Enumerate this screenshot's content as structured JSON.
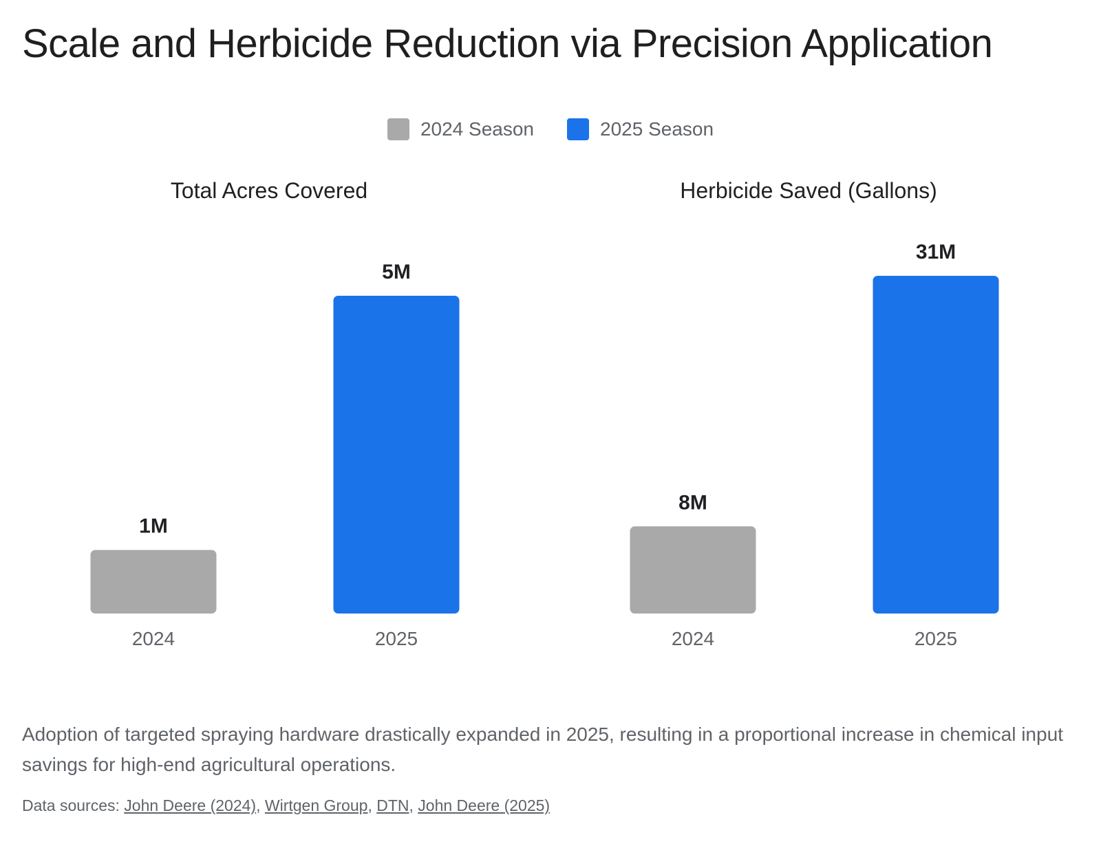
{
  "title": "Scale and Herbicide Reduction via Precision Application",
  "legend": [
    {
      "label": "2024 Season",
      "color": "#a9a9a9"
    },
    {
      "label": "2025 Season",
      "color": "#1a73e8"
    }
  ],
  "chart_data": [
    {
      "type": "bar",
      "title": "Total Acres Covered",
      "categories": [
        "2024",
        "2025"
      ],
      "values": [
        1000000,
        5000000
      ],
      "value_labels": [
        "1M",
        "5M"
      ],
      "colors": [
        "#a9a9a9",
        "#1a73e8"
      ],
      "ylim": [
        0,
        5000000
      ]
    },
    {
      "type": "bar",
      "title": "Herbicide Saved (Gallons)",
      "categories": [
        "2024",
        "2025"
      ],
      "values": [
        8000000,
        31000000
      ],
      "value_labels": [
        "8M",
        "31M"
      ],
      "colors": [
        "#a9a9a9",
        "#1a73e8"
      ],
      "ylim": [
        0,
        31000000
      ]
    }
  ],
  "footnote": "Adoption of targeted spraying hardware drastically expanded in 2025, resulting in a proportional increase in chemical input savings for high-end agricultural operations.",
  "sources": {
    "prefix": "Data sources:",
    "links": [
      "John Deere (2024)",
      "Wirtgen Group",
      "DTN",
      "John Deere (2025)"
    ]
  }
}
